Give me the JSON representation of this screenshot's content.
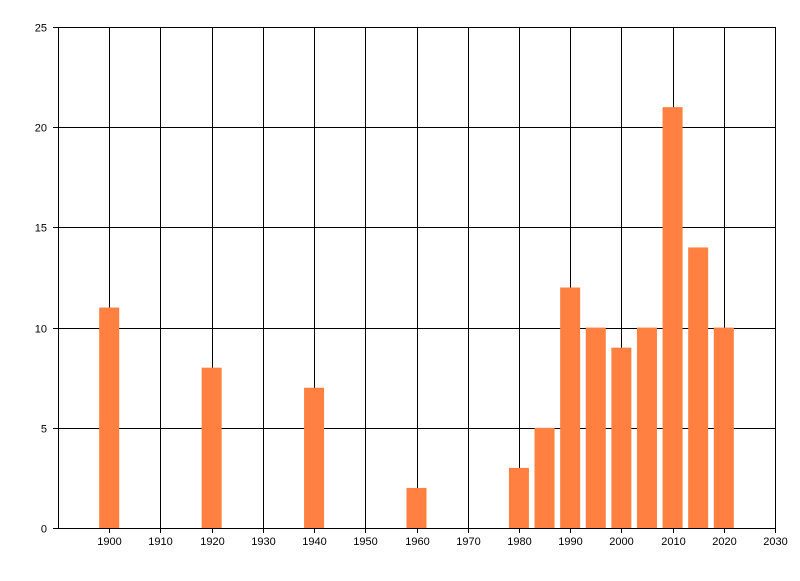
{
  "chart_data": {
    "type": "bar",
    "title": "",
    "xlabel": "",
    "ylabel": "",
    "x": [
      1900,
      1920,
      1940,
      1960,
      1980,
      1985,
      1990,
      1995,
      2000,
      2005,
      2010,
      2015,
      2020
    ],
    "values": [
      11,
      8,
      7,
      2,
      3,
      5,
      12,
      10,
      9,
      10,
      21,
      14,
      10
    ],
    "xlim": [
      1890,
      2030
    ],
    "ylim": [
      0,
      25
    ],
    "x_ticks": [
      1900,
      1910,
      1920,
      1930,
      1940,
      1950,
      1960,
      1970,
      1980,
      1990,
      2000,
      2010,
      2020,
      2030
    ],
    "y_ticks": [
      0,
      5,
      10,
      15,
      20,
      25
    ],
    "x_tick_labels": [
      "1900",
      "1910",
      "1920",
      "1930",
      "1940",
      "1950",
      "1960",
      "1970",
      "1980",
      "1990",
      "2000",
      "2010",
      "2020",
      "2030"
    ],
    "y_tick_labels": [
      "0",
      "5",
      "10",
      "15",
      "20",
      "25"
    ],
    "grid": true,
    "legend": "none",
    "bar_color": "#FF8040",
    "grid_color": "#000000"
  }
}
